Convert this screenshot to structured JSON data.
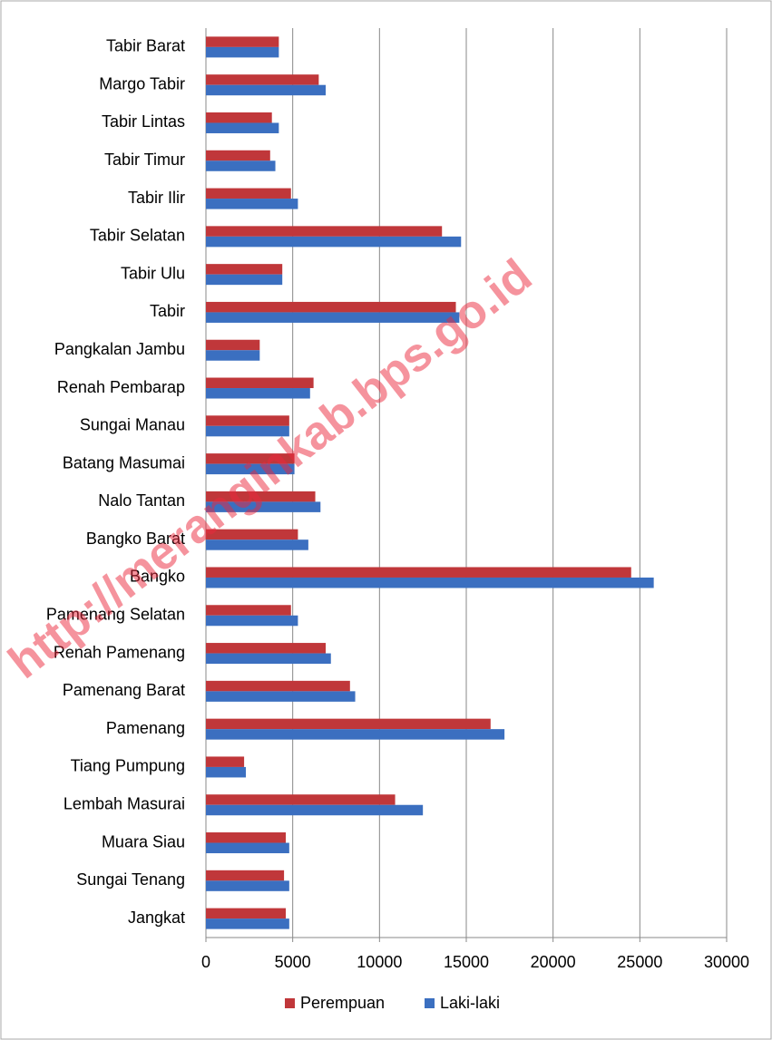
{
  "chart_data": {
    "type": "barh",
    "categories": [
      "Tabir Barat",
      "Margo Tabir",
      "Tabir Lintas",
      "Tabir Timur",
      "Tabir Ilir",
      "Tabir Selatan",
      "Tabir Ulu",
      "Tabir",
      "Pangkalan Jambu",
      "Renah Pembarap",
      "Sungai Manau",
      "Batang Masumai",
      "Nalo Tantan",
      "Bangko Barat",
      "Bangko",
      "Pamenang Selatan",
      "Renah Pamenang",
      "Pamenang Barat",
      "Pamenang",
      "Tiang Pumpung",
      "Lembah Masurai",
      "Muara Siau",
      "Sungai Tenang",
      "Jangkat"
    ],
    "series": [
      {
        "name": "Perempuan",
        "color": "#c0373a",
        "values": [
          4200,
          6500,
          3800,
          3700,
          4900,
          13600,
          4400,
          14400,
          3100,
          6200,
          4800,
          5100,
          6300,
          5300,
          24500,
          4900,
          6900,
          8300,
          16400,
          2200,
          10900,
          4600,
          4500,
          4600
        ]
      },
      {
        "name": "Laki-laki",
        "color": "#3b6fc0",
        "values": [
          4200,
          6900,
          4200,
          4000,
          5300,
          14700,
          4400,
          14600,
          3100,
          6000,
          4800,
          5100,
          6600,
          5900,
          25800,
          5300,
          7200,
          8600,
          17200,
          2300,
          12500,
          4800,
          4800,
          4800
        ]
      }
    ],
    "xlim": [
      0,
      30000
    ],
    "xticks": [
      0,
      5000,
      10000,
      15000,
      20000,
      25000,
      30000
    ],
    "grid": true,
    "legend": "bottom",
    "watermark": "http://meranginkab.bps.go.id"
  }
}
